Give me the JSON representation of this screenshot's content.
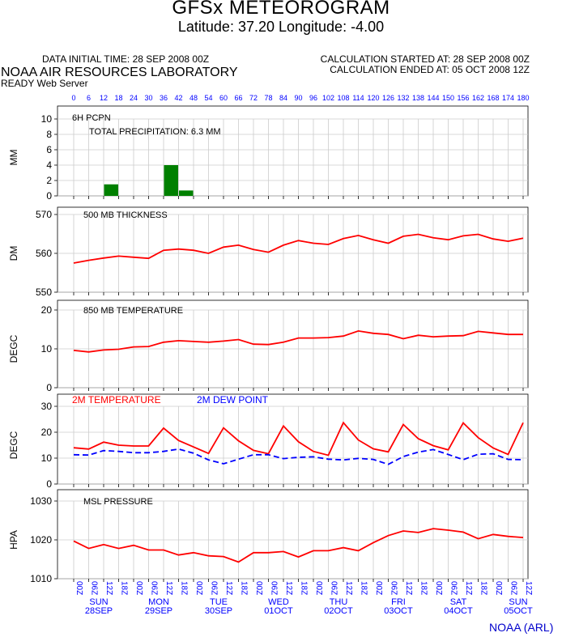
{
  "header": {
    "title": "GFSx METEOROGRAM",
    "location": "Latitude: 37.20 Longitude:  -4.00",
    "data_initial_time": "DATA INITIAL TIME: 28 SEP 2008 00Z",
    "calc_started": "CALCULATION STARTED AT: 28 SEP 2008 00Z",
    "calc_ended": "CALCULATION ENDED AT: 05 OCT 2008 12Z",
    "lab": "NOAA AIR RESOURCES LABORATORY",
    "server": "READY Web Server"
  },
  "footer": {
    "credit": "NOAA (ARL)"
  },
  "colors": {
    "red": "#ff0000",
    "blue": "#0000ff",
    "green": "#008000",
    "grid": "#cccccc"
  },
  "chart_data": [
    {
      "type": "bar",
      "panel_label": "6H PCPN",
      "annotation": "TOTAL PRECIPITATION:  6.3 MM",
      "ylabel": "MM",
      "ylim": [
        0,
        10
      ],
      "yticks": [
        0,
        2,
        4,
        6,
        8,
        10
      ],
      "x": [
        0,
        6,
        12,
        18,
        24,
        30,
        36,
        42,
        48,
        54,
        60,
        66,
        72,
        78,
        84,
        90,
        96,
        102,
        108,
        114,
        120,
        126,
        132,
        138,
        144,
        150,
        156,
        162,
        168,
        174,
        180
      ],
      "xtick_labels": [
        "0",
        "6",
        "12",
        "18",
        "24",
        "30",
        "36",
        "42",
        "48",
        "54",
        "60",
        "66",
        "72",
        "78",
        "84",
        "90",
        "96",
        "102",
        "108",
        "114",
        "120",
        "126",
        "132",
        "138",
        "144",
        "150",
        "156",
        "162",
        "168",
        "174",
        "180"
      ],
      "values": [
        0,
        0,
        0,
        1.5,
        0,
        0,
        0,
        4.0,
        0.7,
        0,
        0,
        0,
        0,
        0,
        0,
        0,
        0,
        0,
        0,
        0,
        0,
        0,
        0,
        0,
        0,
        0,
        0,
        0,
        0,
        0,
        0
      ],
      "color": "#008000"
    },
    {
      "type": "line",
      "panel_label": "500 MB  THICKNESS",
      "ylabel": "DM",
      "ylim": [
        550,
        570
      ],
      "yticks": [
        550,
        560,
        570
      ],
      "series": [
        {
          "color": "#ff0000",
          "values": [
            557.5,
            558.2,
            558.8,
            559.3,
            559.0,
            558.7,
            560.8,
            561.1,
            560.8,
            560.0,
            561.6,
            562.1,
            561.0,
            560.3,
            562.1,
            563.3,
            562.6,
            562.3,
            563.8,
            564.6,
            563.5,
            562.6,
            564.4,
            564.9,
            564.0,
            563.5,
            564.5,
            564.9,
            563.7,
            563.1,
            563.9
          ]
        }
      ]
    },
    {
      "type": "line",
      "panel_label": "850 MB  TEMPERATURE",
      "ylabel": "DEGC",
      "ylim": [
        0,
        20
      ],
      "yticks": [
        0,
        10,
        20
      ],
      "series": [
        {
          "color": "#ff0000",
          "values": [
            9.6,
            9.2,
            9.7,
            9.9,
            10.5,
            10.6,
            11.7,
            12.1,
            11.9,
            11.7,
            12.0,
            12.4,
            11.2,
            11.1,
            11.7,
            12.8,
            12.8,
            12.9,
            13.3,
            14.6,
            14.0,
            13.7,
            12.6,
            13.5,
            13.1,
            13.3,
            13.4,
            14.5,
            14.1,
            13.7,
            13.7
          ]
        }
      ]
    },
    {
      "type": "line",
      "panel_label": "",
      "ylabel": "DEGC",
      "ylim": [
        0,
        30
      ],
      "yticks": [
        0,
        10,
        20,
        30
      ],
      "series": [
        {
          "name": "2M TEMPERATURE",
          "color": "#ff0000",
          "dashed": false,
          "values": [
            14.0,
            13.5,
            16.2,
            15.0,
            14.7,
            14.7,
            21.6,
            16.8,
            14.3,
            11.8,
            21.7,
            16.7,
            13.0,
            11.7,
            22.4,
            16.3,
            12.6,
            11.1,
            23.7,
            17.0,
            13.6,
            12.4,
            23.0,
            17.5,
            14.8,
            13.2,
            23.6,
            17.9,
            13.9,
            11.4,
            23.7
          ]
        },
        {
          "name": "2M  DEW POINT",
          "color": "#0000ff",
          "dashed": true,
          "values": [
            11.3,
            11.2,
            12.9,
            12.6,
            12.1,
            12.1,
            12.6,
            13.5,
            11.9,
            9.3,
            7.8,
            9.6,
            11.3,
            11.3,
            9.8,
            10.3,
            10.5,
            9.6,
            9.3,
            9.9,
            9.5,
            7.6,
            10.6,
            12.3,
            13.3,
            11.4,
            9.4,
            11.5,
            11.7,
            9.5,
            9.4
          ]
        }
      ]
    },
    {
      "type": "line",
      "panel_label": "MSL PRESSURE",
      "ylabel": "HPA",
      "ylim": [
        1010,
        1030
      ],
      "yticks": [
        1010,
        1020,
        1030
      ],
      "series": [
        {
          "color": "#ff0000",
          "values": [
            1019.7,
            1017.8,
            1018.8,
            1017.8,
            1018.6,
            1017.4,
            1017.4,
            1016.1,
            1016.7,
            1015.9,
            1015.7,
            1014.3,
            1016.7,
            1016.7,
            1017.0,
            1015.6,
            1017.2,
            1017.2,
            1018.0,
            1017.2,
            1019.3,
            1021.1,
            1022.3,
            1021.9,
            1022.9,
            1022.5,
            1022.0,
            1020.3,
            1021.4,
            1020.9,
            1020.6
          ]
        }
      ]
    }
  ],
  "time_axis": {
    "hour_labels": [
      "00Z",
      "06Z",
      "12Z",
      "18Z",
      "00Z",
      "06Z",
      "12Z",
      "18Z",
      "00Z",
      "06Z",
      "12Z",
      "18Z",
      "00Z",
      "06Z",
      "12Z",
      "18Z",
      "00Z",
      "06Z",
      "12Z",
      "18Z",
      "00Z",
      "06Z",
      "12Z",
      "18Z",
      "00Z",
      "06Z",
      "12Z",
      "18Z",
      "00Z",
      "06Z",
      "12Z"
    ],
    "days": [
      {
        "day": "SUN",
        "date": "28SEP"
      },
      {
        "day": "MON",
        "date": "29SEP"
      },
      {
        "day": "TUE",
        "date": "30SEP"
      },
      {
        "day": "WED",
        "date": "01OCT"
      },
      {
        "day": "THU",
        "date": "02OCT"
      },
      {
        "day": "FRI",
        "date": "03OCT"
      },
      {
        "day": "SAT",
        "date": "04OCT"
      },
      {
        "day": "SUN",
        "date": "05OCT"
      }
    ]
  }
}
